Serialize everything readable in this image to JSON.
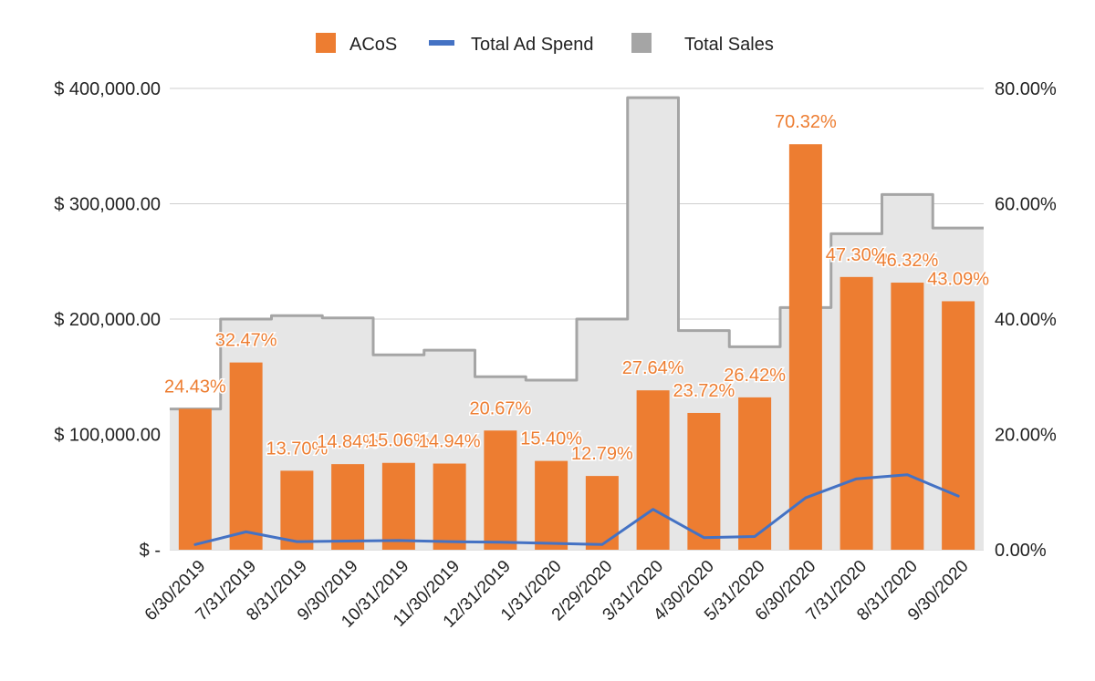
{
  "chart_data": {
    "type": "bar",
    "categories": [
      "6/30/2019",
      "7/31/2019",
      "8/31/2019",
      "9/30/2019",
      "10/31/2019",
      "11/30/2019",
      "12/31/2019",
      "1/31/2020",
      "2/29/2020",
      "3/31/2020",
      "4/30/2020",
      "5/31/2020",
      "6/30/2020",
      "7/31/2020",
      "8/31/2020",
      "9/30/2020"
    ],
    "series": [
      {
        "name": "ACoS",
        "kind": "bar",
        "axis": "right",
        "color": "#ed7d31",
        "values": [
          24.43,
          32.47,
          13.7,
          14.84,
          15.06,
          14.94,
          20.67,
          15.4,
          12.79,
          27.64,
          23.72,
          26.42,
          70.32,
          47.3,
          46.32,
          43.09
        ],
        "labels": [
          "24.43%",
          "32.47%",
          "13.70%",
          "14.84%",
          "15.06%",
          "14.94%",
          "20.67%",
          "15.40%",
          "12.79%",
          "27.64%",
          "23.72%",
          "26.42%",
          "70.32%",
          "47.30%",
          "46.32%",
          "43.09%"
        ]
      },
      {
        "name": "Total Ad Spend",
        "kind": "line",
        "axis": "left",
        "color": "#4472c4",
        "values": [
          4500,
          15500,
          7000,
          7500,
          8000,
          7000,
          6500,
          5500,
          4500,
          35000,
          10500,
          11500,
          45000,
          61500,
          65000,
          46500
        ]
      },
      {
        "name": "Total Sales",
        "kind": "stepped-area",
        "axis": "left",
        "color": "#a5a5a5",
        "fill": "#e6e6e6",
        "values": [
          122000,
          200000,
          203000,
          201000,
          169000,
          173000,
          150000,
          147000,
          200000,
          392000,
          190000,
          176000,
          210000,
          274000,
          308000,
          279000
        ]
      }
    ],
    "y_left": {
      "ticks": [
        0,
        100000,
        200000,
        300000,
        400000
      ],
      "tick_labels": [
        "$ -",
        "$ 100,000.00",
        "$ 200,000.00",
        "$ 300,000.00",
        "$ 400,000.00"
      ],
      "ylim": [
        0,
        400000
      ]
    },
    "y_right": {
      "ticks": [
        0,
        20,
        40,
        60,
        80
      ],
      "tick_labels": [
        "0.00%",
        "20.00%",
        "40.00%",
        "60.00%",
        "80.00%"
      ],
      "ylim": [
        0,
        80
      ]
    },
    "grid": true,
    "legend": "top-center"
  }
}
